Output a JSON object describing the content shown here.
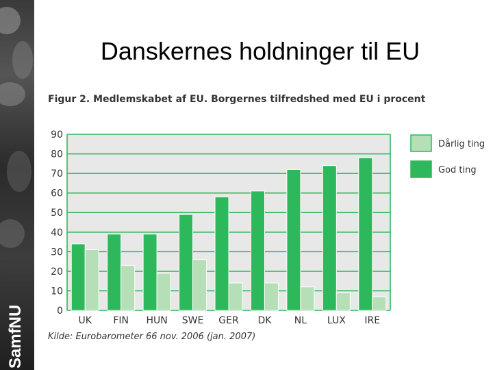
{
  "slide": {
    "title": "Danskernes holdninger til EU",
    "brand": "SamfNU"
  },
  "colors": {
    "accent_green": "#2eb85c",
    "light_green": "#b6dfb8",
    "grid_green": "#2eb85c",
    "plot_bg": "#e8e8e8"
  },
  "chart_data": {
    "type": "bar",
    "title": "Figur 2. Medlemskabet af EU. Borgernes tilfredshed med EU i procent",
    "categories": [
      "UK",
      "FIN",
      "HUN",
      "SWE",
      "GER",
      "DK",
      "NL",
      "LUX",
      "IRE"
    ],
    "series": [
      {
        "name": "God ting",
        "values": [
          34,
          39,
          39,
          49,
          58,
          61,
          72,
          74,
          78
        ],
        "color": "#2eb85c"
      },
      {
        "name": "Dårlig ting",
        "values": [
          31,
          23,
          19,
          26,
          14,
          14,
          12,
          9,
          7
        ],
        "color": "#b6dfb8"
      }
    ],
    "legend_order": [
      "Dårlig ting",
      "God ting"
    ],
    "yticks": [
      0,
      10,
      20,
      30,
      40,
      50,
      60,
      70,
      80,
      90
    ],
    "ylim": [
      0,
      90
    ],
    "grid": true,
    "legend_position": "right",
    "source": "Kilde: Eurobarometer 66 nov. 2006 (jan. 2007)"
  }
}
